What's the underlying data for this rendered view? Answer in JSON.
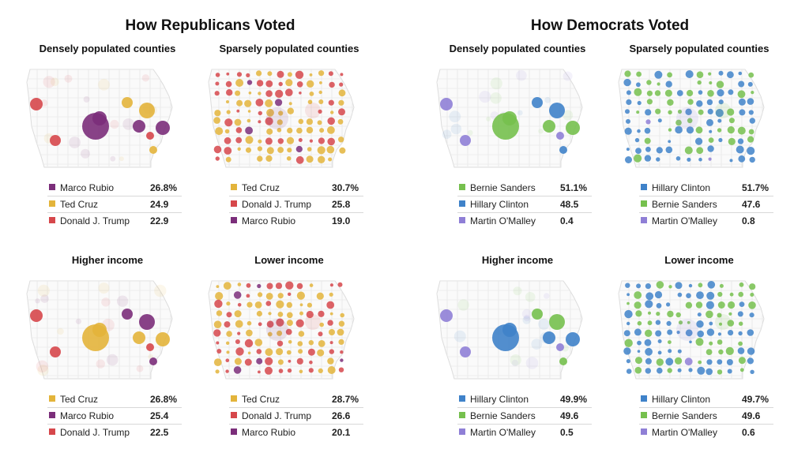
{
  "colors": {
    "Marco Rubio": "#7b2e7a",
    "Ted Cruz": "#e3b43b",
    "Donald J. Trump": "#d6474b",
    "Bernie Sanders": "#76c04e",
    "Hillary Clinton": "#3f82c9",
    "Martin O'Malley": "#8f7fd6"
  },
  "sections": [
    {
      "title": "How Republicans Voted"
    },
    {
      "title": "How Democrats Voted"
    }
  ],
  "chart_data": [
    {
      "type": "table",
      "section": "How Republicans Voted",
      "title": "Densely populated counties",
      "legend": [
        {
          "name": "Marco Rubio",
          "value": "26.8%"
        },
        {
          "name": "Ted Cruz",
          "value": "24.9"
        },
        {
          "name": "Donald J. Trump",
          "value": "22.9"
        }
      ]
    },
    {
      "type": "table",
      "section": "How Republicans Voted",
      "title": "Sparsely populated counties",
      "legend": [
        {
          "name": "Ted Cruz",
          "value": "30.7%"
        },
        {
          "name": "Donald J. Trump",
          "value": "25.8"
        },
        {
          "name": "Marco Rubio",
          "value": "19.0"
        }
      ]
    },
    {
      "type": "table",
      "section": "How Democrats Voted",
      "title": "Densely populated counties",
      "legend": [
        {
          "name": "Bernie Sanders",
          "value": "51.1%"
        },
        {
          "name": "Hillary Clinton",
          "value": "48.5"
        },
        {
          "name": "Martin O'Malley",
          "value": "0.4"
        }
      ]
    },
    {
      "type": "table",
      "section": "How Democrats Voted",
      "title": "Sparsely populated counties",
      "legend": [
        {
          "name": "Hillary Clinton",
          "value": "51.7%"
        },
        {
          "name": "Bernie Sanders",
          "value": "47.6"
        },
        {
          "name": "Martin O'Malley",
          "value": "0.8"
        }
      ]
    },
    {
      "type": "table",
      "section": "How Republicans Voted",
      "title": "Higher income",
      "legend": [
        {
          "name": "Ted Cruz",
          "value": "26.8%"
        },
        {
          "name": "Marco Rubio",
          "value": "25.4"
        },
        {
          "name": "Donald J. Trump",
          "value": "22.5"
        }
      ]
    },
    {
      "type": "table",
      "section": "How Republicans Voted",
      "title": "Lower income",
      "legend": [
        {
          "name": "Ted Cruz",
          "value": "28.7%"
        },
        {
          "name": "Donald J. Trump",
          "value": "26.6"
        },
        {
          "name": "Marco Rubio",
          "value": "20.1"
        }
      ]
    },
    {
      "type": "table",
      "section": "How Democrats Voted",
      "title": "Higher income",
      "legend": [
        {
          "name": "Hillary Clinton",
          "value": "49.9%"
        },
        {
          "name": "Bernie Sanders",
          "value": "49.6"
        },
        {
          "name": "Martin O'Malley",
          "value": "0.5"
        }
      ]
    },
    {
      "type": "table",
      "section": "How Democrats Voted",
      "title": "Lower income",
      "legend": [
        {
          "name": "Hillary Clinton",
          "value": "49.7%"
        },
        {
          "name": "Bernie Sanders",
          "value": "49.6"
        },
        {
          "name": "Martin O'Malley",
          "value": "0.6"
        }
      ]
    }
  ]
}
